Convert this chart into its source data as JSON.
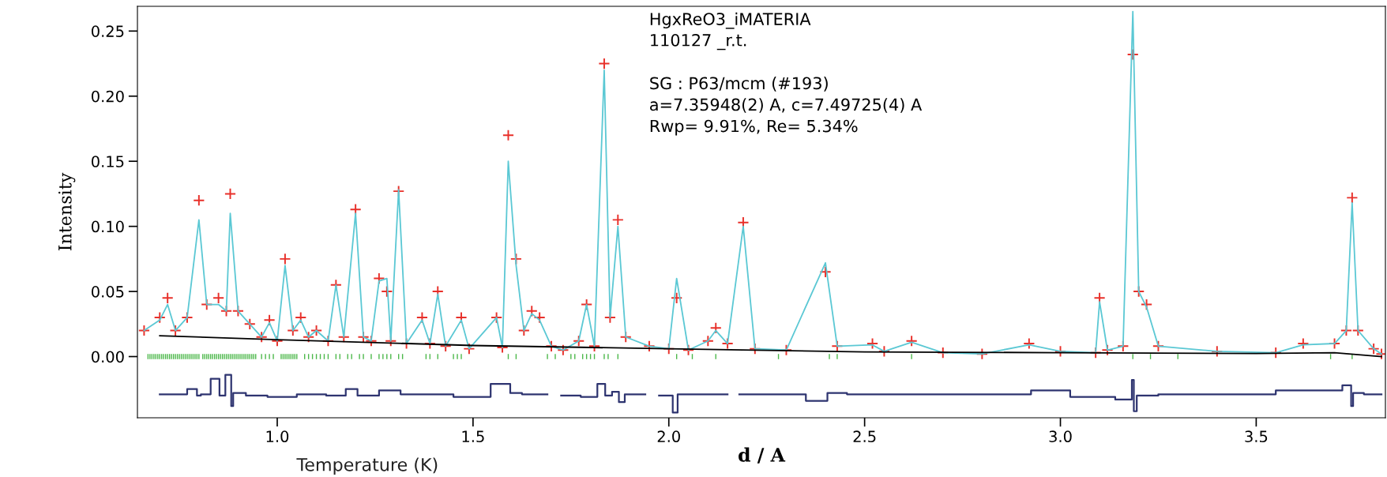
{
  "chart_data": {
    "type": "scatter",
    "xlabel": "d / A",
    "ylabel": "Intensity",
    "annotations": [
      "HgxReO3_iMATERIA",
      "110127 _r.t.",
      "SG : P63/mcm (#193)",
      "a=7.35948(2) A, c=7.49725(4) A",
      "Rwp= 9.91%, Re= 5.34%",
      "Temperature (K)"
    ],
    "xlim": [
      0.643,
      3.83
    ],
    "ylim": [
      -0.047,
      0.269
    ],
    "xticks": [
      {
        "value": 1.0,
        "label": "1.0"
      },
      {
        "value": 1.5,
        "label": "1.5"
      },
      {
        "value": 2.0,
        "label": "2.0"
      },
      {
        "value": 2.5,
        "label": "2.5"
      },
      {
        "value": 3.0,
        "label": "3.0"
      },
      {
        "value": 3.5,
        "label": "3.5"
      }
    ],
    "yticks": [
      {
        "value": 0.0,
        "label": "0.00"
      },
      {
        "value": 0.05,
        "label": "0.05"
      },
      {
        "value": 0.1,
        "label": "0.10"
      },
      {
        "value": 0.15,
        "label": "0.15"
      },
      {
        "value": 0.2,
        "label": "0.20"
      },
      {
        "value": 0.25,
        "label": "0.25"
      }
    ],
    "series": [
      {
        "type": "line",
        "color": "#5bc8d4",
        "x": [
          0.66,
          0.7,
          0.72,
          0.74,
          0.77,
          0.8,
          0.82,
          0.85,
          0.87,
          0.88,
          0.9,
          0.93,
          0.96,
          0.98,
          1.0,
          1.02,
          1.04,
          1.06,
          1.08,
          1.1,
          1.13,
          1.15,
          1.17,
          1.2,
          1.22,
          1.24,
          1.26,
          1.28,
          1.29,
          1.31,
          1.33,
          1.37,
          1.39,
          1.41,
          1.43,
          1.47,
          1.49,
          1.56,
          1.575,
          1.59,
          1.61,
          1.63,
          1.65,
          1.67,
          1.7,
          1.73,
          1.77,
          1.79,
          1.81,
          1.835,
          1.85,
          1.87,
          1.89,
          1.95,
          2.0,
          2.02,
          2.05,
          2.1,
          2.12,
          2.15,
          2.19,
          2.22,
          2.3,
          2.4,
          2.43,
          2.52,
          2.55,
          2.62,
          2.7,
          2.8,
          2.92,
          3.0,
          3.09,
          3.1,
          3.12,
          3.16,
          3.185,
          3.2,
          3.22,
          3.25,
          3.4,
          3.55,
          3.62,
          3.7,
          3.73,
          3.745,
          3.76,
          3.8,
          3.82
        ],
        "values": [
          0.02,
          0.028,
          0.04,
          0.02,
          0.03,
          0.105,
          0.04,
          0.04,
          0.035,
          0.11,
          0.035,
          0.025,
          0.015,
          0.026,
          0.012,
          0.07,
          0.02,
          0.028,
          0.015,
          0.02,
          0.012,
          0.055,
          0.015,
          0.11,
          0.015,
          0.012,
          0.058,
          0.06,
          0.012,
          0.128,
          0.01,
          0.028,
          0.01,
          0.048,
          0.008,
          0.028,
          0.006,
          0.03,
          0.007,
          0.15,
          0.07,
          0.02,
          0.033,
          0.028,
          0.008,
          0.005,
          0.012,
          0.04,
          0.008,
          0.22,
          0.03,
          0.1,
          0.015,
          0.008,
          0.006,
          0.06,
          0.005,
          0.012,
          0.02,
          0.01,
          0.1,
          0.006,
          0.005,
          0.072,
          0.008,
          0.009,
          0.004,
          0.011,
          0.003,
          0.002,
          0.009,
          0.004,
          0.003,
          0.042,
          0.005,
          0.008,
          0.265,
          0.05,
          0.038,
          0.008,
          0.004,
          0.003,
          0.009,
          0.01,
          0.02,
          0.118,
          0.02,
          0.006,
          0.002
        ]
      },
      {
        "marker": "cross",
        "color": "#e8302a",
        "x": [
          0.66,
          0.7,
          0.72,
          0.74,
          0.77,
          0.8,
          0.82,
          0.85,
          0.87,
          0.88,
          0.9,
          0.93,
          0.96,
          0.98,
          1.0,
          1.02,
          1.04,
          1.06,
          1.08,
          1.1,
          1.13,
          1.15,
          1.17,
          1.2,
          1.22,
          1.24,
          1.26,
          1.28,
          1.29,
          1.31,
          1.33,
          1.37,
          1.39,
          1.41,
          1.43,
          1.47,
          1.49,
          1.56,
          1.575,
          1.59,
          1.61,
          1.63,
          1.65,
          1.67,
          1.7,
          1.73,
          1.77,
          1.79,
          1.81,
          1.835,
          1.85,
          1.87,
          1.89,
          1.95,
          2.0,
          2.02,
          2.05,
          2.1,
          2.12,
          2.15,
          2.19,
          2.22,
          2.3,
          2.4,
          2.43,
          2.52,
          2.55,
          2.62,
          2.7,
          2.8,
          2.92,
          3.0,
          3.09,
          3.1,
          3.12,
          3.16,
          3.185,
          3.2,
          3.22,
          3.25,
          3.4,
          3.55,
          3.62,
          3.7,
          3.73,
          3.745,
          3.76,
          3.8,
          3.82
        ],
        "values": [
          0.02,
          0.03,
          0.045,
          0.02,
          0.03,
          0.12,
          0.04,
          0.045,
          0.035,
          0.125,
          0.035,
          0.025,
          0.015,
          0.028,
          0.012,
          0.075,
          0.02,
          0.03,
          0.015,
          0.02,
          0.012,
          0.055,
          0.015,
          0.113,
          0.015,
          0.012,
          0.06,
          0.05,
          0.012,
          0.127,
          0.01,
          0.03,
          0.01,
          0.05,
          0.008,
          0.03,
          0.006,
          0.03,
          0.007,
          0.17,
          0.075,
          0.02,
          0.035,
          0.03,
          0.008,
          0.005,
          0.012,
          0.04,
          0.008,
          0.225,
          0.03,
          0.105,
          0.015,
          0.008,
          0.006,
          0.045,
          0.005,
          0.012,
          0.022,
          0.01,
          0.103,
          0.006,
          0.005,
          0.065,
          0.008,
          0.01,
          0.004,
          0.012,
          0.003,
          0.002,
          0.01,
          0.004,
          0.003,
          0.045,
          0.005,
          0.008,
          0.232,
          0.05,
          0.04,
          0.008,
          0.004,
          0.003,
          0.01,
          0.01,
          0.02,
          0.122,
          0.02,
          0.006,
          0.002
        ]
      },
      {
        "type": "line",
        "color": "#000000",
        "x": [
          0.7,
          1.0,
          1.5,
          2.0,
          2.5,
          3.0,
          3.5,
          3.7,
          3.82
        ],
        "values": [
          0.016,
          0.013,
          0.0085,
          0.006,
          0.0036,
          0.003,
          0.0024,
          0.003,
          0.0
        ]
      },
      {
        "type": "bar",
        "color": "#4cb84a",
        "base": [
          -0.002,
          -0.002,
          -0.002,
          -0.002,
          -0.002,
          -0.002,
          -0.002,
          -0.002,
          -0.002,
          -0.002,
          -0.002,
          -0.002,
          -0.002,
          -0.002,
          -0.002,
          -0.002,
          -0.002,
          -0.002,
          -0.002,
          -0.002,
          -0.002,
          -0.002,
          -0.002,
          -0.002,
          -0.002,
          -0.002,
          -0.002,
          -0.002,
          -0.002,
          -0.002,
          -0.002,
          -0.002,
          -0.002,
          -0.002,
          -0.002,
          -0.002,
          -0.002,
          -0.002,
          -0.002,
          -0.002,
          -0.002,
          -0.002,
          -0.002,
          -0.002,
          -0.002,
          -0.002,
          -0.002,
          -0.002,
          -0.002,
          -0.002,
          -0.002,
          -0.002,
          -0.002,
          -0.002,
          -0.002,
          -0.002,
          -0.002,
          -0.002,
          -0.002,
          -0.002,
          -0.002,
          -0.002,
          -0.002,
          -0.002,
          -0.002,
          -0.002,
          -0.002,
          -0.002,
          -0.002,
          -0.002,
          -0.002,
          -0.002,
          -0.002,
          -0.002,
          -0.002,
          -0.002,
          -0.002,
          -0.002,
          -0.002,
          -0.002,
          -0.002,
          -0.002,
          -0.002,
          -0.002,
          -0.002,
          -0.002,
          -0.002,
          -0.002,
          -0.002,
          -0.002,
          -0.002,
          -0.002,
          -0.002,
          -0.002,
          -0.002,
          -0.002,
          -0.002,
          -0.002,
          -0.002,
          -0.002,
          -0.002,
          -0.002,
          -0.002,
          -0.002,
          -0.002,
          -0.002,
          -0.002,
          -0.002,
          -0.002,
          -0.002,
          -0.002,
          -0.002,
          -0.002,
          -0.002,
          -0.002,
          -0.002,
          -0.002,
          -0.002,
          -0.002
        ],
        "x": [
          0.67,
          0.675,
          0.68,
          0.685,
          0.69,
          0.695,
          0.7,
          0.705,
          0.71,
          0.715,
          0.72,
          0.725,
          0.73,
          0.735,
          0.74,
          0.745,
          0.75,
          0.755,
          0.76,
          0.765,
          0.77,
          0.775,
          0.78,
          0.785,
          0.79,
          0.795,
          0.8,
          0.81,
          0.815,
          0.82,
          0.825,
          0.83,
          0.835,
          0.84,
          0.845,
          0.85,
          0.855,
          0.86,
          0.865,
          0.87,
          0.875,
          0.88,
          0.885,
          0.89,
          0.895,
          0.9,
          0.905,
          0.91,
          0.915,
          0.92,
          0.925,
          0.93,
          0.935,
          0.94,
          0.945,
          0.96,
          0.97,
          0.98,
          0.99,
          1.01,
          1.015,
          1.02,
          1.025,
          1.03,
          1.035,
          1.04,
          1.045,
          1.05,
          1.07,
          1.08,
          1.09,
          1.1,
          1.11,
          1.12,
          1.13,
          1.15,
          1.16,
          1.18,
          1.19,
          1.21,
          1.22,
          1.24,
          1.26,
          1.27,
          1.28,
          1.29,
          1.31,
          1.32,
          1.38,
          1.39,
          1.41,
          1.45,
          1.46,
          1.47,
          1.59,
          1.61,
          1.69,
          1.71,
          1.75,
          1.76,
          1.78,
          1.79,
          1.8,
          1.81,
          1.835,
          1.845,
          1.87,
          2.02,
          2.06,
          2.12,
          2.28,
          2.41,
          2.43,
          2.62,
          3.185,
          3.23,
          3.3,
          3.69,
          3.745
        ],
        "values": [
          0.004,
          0.004,
          0.004,
          0.004,
          0.004,
          0.004,
          0.004,
          0.004,
          0.004,
          0.004,
          0.004,
          0.004,
          0.004,
          0.004,
          0.004,
          0.004,
          0.004,
          0.004,
          0.004,
          0.004,
          0.004,
          0.004,
          0.004,
          0.004,
          0.004,
          0.004,
          0.004,
          0.004,
          0.004,
          0.004,
          0.004,
          0.004,
          0.004,
          0.004,
          0.004,
          0.004,
          0.004,
          0.004,
          0.004,
          0.004,
          0.004,
          0.004,
          0.004,
          0.004,
          0.004,
          0.004,
          0.004,
          0.004,
          0.004,
          0.004,
          0.004,
          0.004,
          0.004,
          0.004,
          0.004,
          0.004,
          0.004,
          0.004,
          0.004,
          0.004,
          0.004,
          0.004,
          0.004,
          0.004,
          0.004,
          0.004,
          0.004,
          0.004,
          0.004,
          0.004,
          0.004,
          0.004,
          0.004,
          0.004,
          0.004,
          0.004,
          0.004,
          0.004,
          0.004,
          0.004,
          0.004,
          0.004,
          0.004,
          0.004,
          0.004,
          0.004,
          0.004,
          0.004,
          0.004,
          0.004,
          0.004,
          0.004,
          0.004,
          0.004,
          0.004,
          0.004,
          0.004,
          0.004,
          0.004,
          0.004,
          0.004,
          0.004,
          0.004,
          0.004,
          0.004,
          0.004,
          0.004,
          0.004,
          0.004,
          0.004,
          0.004,
          0.004,
          0.004,
          0.004,
          0.004,
          0.004,
          0.004,
          0.004,
          0.004
        ]
      },
      {
        "type": "step",
        "color": "#2e3470",
        "x": [
          0.7,
          0.75,
          0.79,
          0.8,
          0.81,
          0.85,
          0.855,
          0.88,
          0.885,
          0.89,
          0.95,
          1.0,
          1.1,
          1.15,
          1.2,
          1.21,
          1.31,
          1.32,
          1.4,
          1.5,
          1.59,
          1.6,
          1.65,
          1.68,
          1.7,
          1.75,
          1.8,
          1.835,
          1.84,
          1.87,
          1.875,
          1.9,
          1.93,
          1.95,
          2.0,
          2.02,
          2.025,
          2.1,
          2.14,
          2.16,
          2.2,
          2.3,
          2.4,
          2.41,
          2.5,
          2.7,
          2.9,
          2.95,
          3.1,
          3.18,
          3.185,
          3.19,
          3.2,
          3.3,
          3.5,
          3.6,
          3.7,
          3.74,
          3.745,
          3.75,
          3.8,
          3.82
        ],
        "values": [
          -0.029,
          -0.029,
          -0.025,
          -0.03,
          -0.029,
          -0.017,
          -0.03,
          -0.014,
          -0.038,
          -0.028,
          -0.03,
          -0.031,
          -0.029,
          -0.03,
          -0.025,
          -0.03,
          -0.026,
          -0.029,
          -0.029,
          -0.031,
          -0.021,
          -0.028,
          -0.029,
          -0.029,
          null,
          -0.03,
          -0.031,
          -0.021,
          -0.03,
          -0.027,
          -0.035,
          -0.029,
          -0.029,
          null,
          -0.03,
          -0.043,
          -0.029,
          -0.029,
          -0.029,
          null,
          -0.029,
          -0.029,
          -0.034,
          -0.028,
          -0.029,
          -0.029,
          -0.029,
          -0.026,
          -0.031,
          -0.033,
          -0.018,
          -0.042,
          -0.03,
          -0.029,
          -0.029,
          -0.026,
          -0.026,
          -0.022,
          -0.038,
          -0.028,
          -0.029,
          -0.029
        ]
      }
    ]
  }
}
